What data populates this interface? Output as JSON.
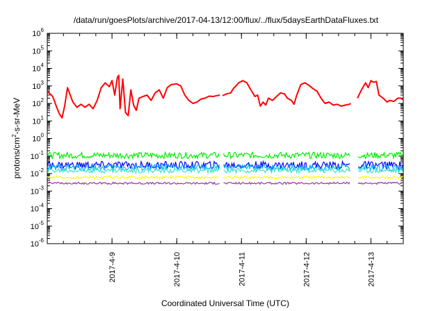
{
  "chart_data": {
    "type": "line",
    "title": "/data/run/goesPlots/archive/2017-04-13/12:00/flux/../flux/5daysEarthDataFluxes.txt",
    "xlabel": "Coordinated Universal Time (UTC)",
    "ylabel": {
      "base": "protons/cm",
      "sup": "2",
      "rest": "-s-sr-MeV"
    },
    "y_scale": "log",
    "ylim": [
      1e-06,
      1000000.0
    ],
    "y_ticks": [
      {
        "base": "10",
        "exp": "-6",
        "v": -6
      },
      {
        "base": "10",
        "exp": "-5",
        "v": -5
      },
      {
        "base": "10",
        "exp": "-4",
        "v": -4
      },
      {
        "base": "10",
        "exp": "-3",
        "v": -3
      },
      {
        "base": "10",
        "exp": "-2",
        "v": -2
      },
      {
        "base": "10",
        "exp": "-1",
        "v": -1
      },
      {
        "base": "10",
        "exp": "0",
        "v": 0
      },
      {
        "base": "10",
        "exp": "1",
        "v": 1
      },
      {
        "base": "10",
        "exp": "2",
        "v": 2
      },
      {
        "base": "10",
        "exp": "3",
        "v": 3
      },
      {
        "base": "10",
        "exp": "4",
        "v": 4
      },
      {
        "base": "10",
        "exp": "5",
        "v": 5
      },
      {
        "base": "10",
        "exp": "6",
        "v": 6
      }
    ],
    "xlim": [
      "2017-04-08T00:00",
      "2017-04-13T12:00"
    ],
    "x_ticks": [
      {
        "label": "2017-4-9",
        "t": "2017-04-09T00:00"
      },
      {
        "label": "2017-4-10",
        "t": "2017-04-10T00:00"
      },
      {
        "label": "2017-4-11",
        "t": "2017-04-11T00:00"
      },
      {
        "label": "2017-4-12",
        "t": "2017-04-12T00:00"
      },
      {
        "label": "2017-4-13",
        "t": "2017-04-13T00:00"
      }
    ],
    "grid": false,
    "series": [
      {
        "color": "#ff0000",
        "data": [
          [
            "2017-04-08T00:00",
            500
          ],
          [
            "2017-04-08T02:00",
            250
          ],
          [
            "2017-04-08T03:30",
            60
          ],
          [
            "2017-04-08T04:30",
            25
          ],
          [
            "2017-04-08T05:30",
            15
          ],
          [
            "2017-04-08T06:30",
            80
          ],
          [
            "2017-04-08T07:30",
            800
          ],
          [
            "2017-04-08T08:30",
            300
          ],
          [
            "2017-04-08T09:30",
            120
          ],
          [
            "2017-04-08T11:00",
            60
          ],
          [
            "2017-04-08T12:30",
            90
          ],
          [
            "2017-04-08T14:00",
            60
          ],
          [
            "2017-04-08T15:30",
            90
          ],
          [
            "2017-04-08T17:00",
            50
          ],
          [
            "2017-04-08T18:30",
            150
          ],
          [
            "2017-04-08T20:00",
            800
          ],
          [
            "2017-04-08T21:30",
            1500
          ],
          [
            "2017-04-08T23:00",
            900
          ],
          [
            "2017-04-09T00:00",
            2000
          ],
          [
            "2017-04-09T01:00",
            300
          ],
          [
            "2017-04-09T02:00",
            3000
          ],
          [
            "2017-04-09T02:30",
            4000
          ],
          [
            "2017-04-09T03:00",
            50
          ],
          [
            "2017-04-09T04:00",
            2500
          ],
          [
            "2017-04-09T05:00",
            30
          ],
          [
            "2017-04-09T06:00",
            20
          ],
          [
            "2017-04-09T07:00",
            600
          ],
          [
            "2017-04-09T08:00",
            80
          ],
          [
            "2017-04-09T09:00",
            40
          ],
          [
            "2017-04-09T10:00",
            200
          ],
          [
            "2017-04-09T11:30",
            250
          ],
          [
            "2017-04-09T13:00",
            300
          ],
          [
            "2017-04-09T14:30",
            150
          ],
          [
            "2017-04-09T16:00",
            400
          ],
          [
            "2017-04-09T17:30",
            600
          ],
          [
            "2017-04-09T19:00",
            200
          ],
          [
            "2017-04-09T20:30",
            800
          ],
          [
            "2017-04-09T22:00",
            1200
          ],
          [
            "2017-04-10T00:00",
            1300
          ],
          [
            "2017-04-10T01:30",
            1000
          ],
          [
            "2017-04-10T03:00",
            300
          ],
          [
            "2017-04-10T04:30",
            150
          ],
          [
            "2017-04-10T06:00",
            100
          ],
          [
            "2017-04-10T07:30",
            120
          ],
          [
            "2017-04-10T09:00",
            180
          ],
          [
            "2017-04-10T10:30",
            200
          ],
          [
            "2017-04-10T12:00",
            260
          ],
          [
            "2017-04-10T13:30",
            250
          ],
          [
            "2017-04-10T15:00",
            280
          ],
          [
            "2017-04-10T16:00",
            300
          ],
          [
            "2017-04-10T17:00",
            280
          ],
          [
            "2017-04-10T18:30",
            350
          ],
          [
            "2017-04-10T20:00",
            400
          ],
          [
            "2017-04-10T21:00",
            700
          ],
          [
            "2017-04-10T23:00",
            1500
          ],
          [
            "2017-04-11T00:30",
            2000
          ],
          [
            "2017-04-11T02:00",
            1500
          ],
          [
            "2017-04-11T03:30",
            600
          ],
          [
            "2017-04-11T05:00",
            250
          ],
          [
            "2017-04-11T06:00",
            300
          ],
          [
            "2017-04-11T07:00",
            70
          ],
          [
            "2017-04-11T08:00",
            120
          ],
          [
            "2017-04-11T09:00",
            80
          ],
          [
            "2017-04-11T10:00",
            200
          ],
          [
            "2017-04-11T11:30",
            150
          ],
          [
            "2017-04-11T13:00",
            250
          ],
          [
            "2017-04-11T14:30",
            400
          ],
          [
            "2017-04-11T16:00",
            350
          ],
          [
            "2017-04-11T17:00",
            200
          ],
          [
            "2017-04-11T18:30",
            150
          ],
          [
            "2017-04-11T19:30",
            90
          ],
          [
            "2017-04-11T20:30",
            300
          ],
          [
            "2017-04-11T22:00",
            1200
          ],
          [
            "2017-04-11T23:30",
            1500
          ],
          [
            "2017-04-12T01:00",
            1100
          ],
          [
            "2017-04-12T02:30",
            700
          ],
          [
            "2017-04-12T04:00",
            500
          ],
          [
            "2017-04-12T05:30",
            200
          ],
          [
            "2017-04-12T07:00",
            100
          ],
          [
            "2017-04-12T08:30",
            120
          ],
          [
            "2017-04-12T10:00",
            80
          ],
          [
            "2017-04-12T11:30",
            90
          ],
          [
            "2017-04-12T13:00",
            70
          ],
          [
            "2017-04-12T14:30",
            80
          ],
          [
            "2017-04-12T16:00",
            90
          ],
          [
            "2017-04-12T16:30",
            100
          ],
          [
            "2017-04-12T19:00",
            200
          ],
          [
            "2017-04-12T20:30",
            600
          ],
          [
            "2017-04-12T22:00",
            1500
          ],
          [
            "2017-04-12T23:00",
            800
          ],
          [
            "2017-04-13T00:00",
            2000
          ],
          [
            "2017-04-13T01:00",
            1600
          ],
          [
            "2017-04-13T02:00",
            1800
          ],
          [
            "2017-04-13T03:00",
            300
          ],
          [
            "2017-04-13T04:30",
            200
          ],
          [
            "2017-04-13T06:00",
            120
          ],
          [
            "2017-04-13T07:00",
            150
          ],
          [
            "2017-04-13T08:30",
            130
          ],
          [
            "2017-04-13T10:00",
            200
          ],
          [
            "2017-04-13T11:00",
            200
          ],
          [
            "2017-04-13T12:00",
            160
          ]
        ]
      },
      {
        "color": "#00ee00",
        "data": [
          [
            "2017-04-08T00:00",
            0.11
          ],
          [
            "2017-04-13T12:00",
            0.11
          ]
        ]
      },
      {
        "color": "#0000ff",
        "data": [
          [
            "2017-04-08T00:00",
            0.03
          ],
          [
            "2017-04-13T12:00",
            0.03
          ]
        ]
      },
      {
        "color": "#00b4ff",
        "data": [
          [
            "2017-04-08T00:00",
            0.022
          ],
          [
            "2017-04-13T12:00",
            0.022
          ]
        ]
      },
      {
        "color": "#40e0c8",
        "data": [
          [
            "2017-04-08T00:00",
            0.015
          ],
          [
            "2017-04-13T12:00",
            0.015
          ]
        ]
      },
      {
        "color": "#ffff00",
        "data": [
          [
            "2017-04-08T00:00",
            0.006
          ],
          [
            "2017-04-13T12:00",
            0.006
          ]
        ]
      },
      {
        "color": "#993399",
        "data": [
          [
            "2017-04-08T00:00",
            0.0028
          ],
          [
            "2017-04-13T12:00",
            0.0028
          ]
        ]
      }
    ]
  }
}
